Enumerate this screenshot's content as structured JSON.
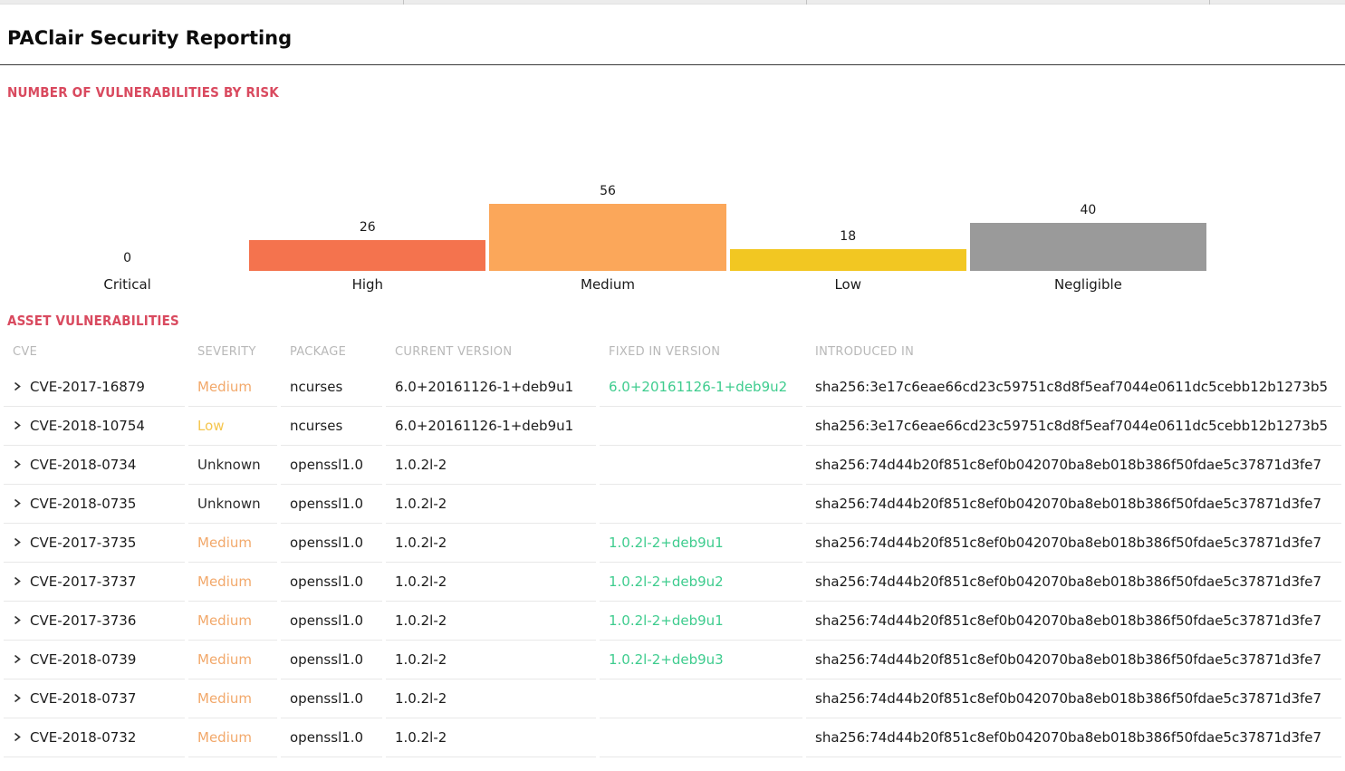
{
  "page": {
    "title": "PAClair Security Reporting"
  },
  "sections": {
    "chart_heading": "NUMBER OF VULNERABILITIES BY RISK",
    "table_heading": "ASSET VULNERABILITIES"
  },
  "colors": {
    "accent_heading": "#d94a5f",
    "fixed_version_green": "#3ecc8e",
    "table_header_gray": "#b8b8b8",
    "severity_colors": {
      "Medium": "#f2a86a",
      "Low": "#f5c64e",
      "Unknown": "#2b2b2b"
    }
  },
  "chart_data": {
    "type": "bar",
    "title": "NUMBER OF VULNERABILITIES BY RISK",
    "categories": [
      "Critical",
      "High",
      "Medium",
      "Low",
      "Negligible"
    ],
    "values": [
      0,
      26,
      56,
      18,
      40
    ],
    "bar_colors": [
      "#f4734e",
      "#f4734e",
      "#fba75a",
      "#f2c722",
      "#9a9a9a"
    ],
    "xlabel": "",
    "ylabel": "",
    "ylim": [
      0,
      56
    ],
    "grid": false,
    "legend": false,
    "value_labels": true
  },
  "table": {
    "columns": [
      "CVE",
      "SEVERITY",
      "PACKAGE",
      "CURRENT VERSION",
      "FIXED IN VERSION",
      "INTRODUCED IN"
    ],
    "rows": [
      {
        "cve": "CVE-2017-16879",
        "severity": "Medium",
        "package": "ncurses",
        "current_version": "6.0+20161126-1+deb9u1",
        "fixed_in_version": "6.0+20161126-1+deb9u2",
        "introduced_in": "sha256:3e17c6eae66cd23c59751c8d8f5eaf7044e0611dc5cebb12b1273b5"
      },
      {
        "cve": "CVE-2018-10754",
        "severity": "Low",
        "package": "ncurses",
        "current_version": "6.0+20161126-1+deb9u1",
        "fixed_in_version": "",
        "introduced_in": "sha256:3e17c6eae66cd23c59751c8d8f5eaf7044e0611dc5cebb12b1273b5"
      },
      {
        "cve": "CVE-2018-0734",
        "severity": "Unknown",
        "package": "openssl1.0",
        "current_version": "1.0.2l-2",
        "fixed_in_version": "",
        "introduced_in": "sha256:74d44b20f851c8ef0b042070ba8eb018b386f50fdae5c37871d3fe7"
      },
      {
        "cve": "CVE-2018-0735",
        "severity": "Unknown",
        "package": "openssl1.0",
        "current_version": "1.0.2l-2",
        "fixed_in_version": "",
        "introduced_in": "sha256:74d44b20f851c8ef0b042070ba8eb018b386f50fdae5c37871d3fe7"
      },
      {
        "cve": "CVE-2017-3735",
        "severity": "Medium",
        "package": "openssl1.0",
        "current_version": "1.0.2l-2",
        "fixed_in_version": "1.0.2l-2+deb9u1",
        "introduced_in": "sha256:74d44b20f851c8ef0b042070ba8eb018b386f50fdae5c37871d3fe7"
      },
      {
        "cve": "CVE-2017-3737",
        "severity": "Medium",
        "package": "openssl1.0",
        "current_version": "1.0.2l-2",
        "fixed_in_version": "1.0.2l-2+deb9u2",
        "introduced_in": "sha256:74d44b20f851c8ef0b042070ba8eb018b386f50fdae5c37871d3fe7"
      },
      {
        "cve": "CVE-2017-3736",
        "severity": "Medium",
        "package": "openssl1.0",
        "current_version": "1.0.2l-2",
        "fixed_in_version": "1.0.2l-2+deb9u1",
        "introduced_in": "sha256:74d44b20f851c8ef0b042070ba8eb018b386f50fdae5c37871d3fe7"
      },
      {
        "cve": "CVE-2018-0739",
        "severity": "Medium",
        "package": "openssl1.0",
        "current_version": "1.0.2l-2",
        "fixed_in_version": "1.0.2l-2+deb9u3",
        "introduced_in": "sha256:74d44b20f851c8ef0b042070ba8eb018b386f50fdae5c37871d3fe7"
      },
      {
        "cve": "CVE-2018-0737",
        "severity": "Medium",
        "package": "openssl1.0",
        "current_version": "1.0.2l-2",
        "fixed_in_version": "",
        "introduced_in": "sha256:74d44b20f851c8ef0b042070ba8eb018b386f50fdae5c37871d3fe7"
      },
      {
        "cve": "CVE-2018-0732",
        "severity": "Medium",
        "package": "openssl1.0",
        "current_version": "1.0.2l-2",
        "fixed_in_version": "",
        "introduced_in": "sha256:74d44b20f851c8ef0b042070ba8eb018b386f50fdae5c37871d3fe7"
      }
    ]
  }
}
